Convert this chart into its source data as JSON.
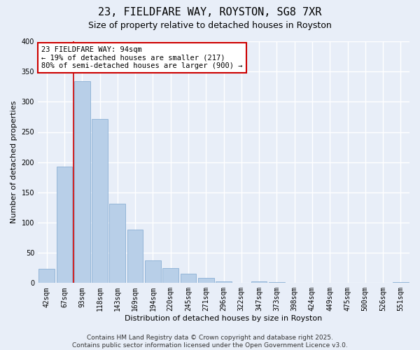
{
  "title": "23, FIELDFARE WAY, ROYSTON, SG8 7XR",
  "subtitle": "Size of property relative to detached houses in Royston",
  "xlabel": "Distribution of detached houses by size in Royston",
  "ylabel": "Number of detached properties",
  "categories": [
    "42sqm",
    "67sqm",
    "93sqm",
    "118sqm",
    "143sqm",
    "169sqm",
    "194sqm",
    "220sqm",
    "245sqm",
    "271sqm",
    "296sqm",
    "322sqm",
    "347sqm",
    "373sqm",
    "398sqm",
    "424sqm",
    "449sqm",
    "475sqm",
    "500sqm",
    "526sqm",
    "551sqm"
  ],
  "values": [
    24,
    193,
    334,
    271,
    131,
    88,
    37,
    25,
    16,
    8,
    3,
    0,
    3,
    2,
    0,
    0,
    0,
    0,
    0,
    0,
    1
  ],
  "bar_color": "#b8cfe8",
  "bar_edge_color": "#8aafd4",
  "vline_color": "#cc0000",
  "annotation_title": "23 FIELDFARE WAY: 94sqm",
  "annotation_line1": "← 19% of detached houses are smaller (217)",
  "annotation_line2": "80% of semi-detached houses are larger (900) →",
  "annotation_box_facecolor": "#ffffff",
  "annotation_box_edgecolor": "#cc0000",
  "ylim": [
    0,
    400
  ],
  "yticks": [
    0,
    50,
    100,
    150,
    200,
    250,
    300,
    350,
    400
  ],
  "footer_line1": "Contains HM Land Registry data © Crown copyright and database right 2025.",
  "footer_line2": "Contains public sector information licensed under the Open Government Licence v3.0.",
  "bg_color": "#e8eef8",
  "title_fontsize": 11,
  "subtitle_fontsize": 9,
  "axis_label_fontsize": 8,
  "tick_fontsize": 7,
  "footer_fontsize": 6.5,
  "annotation_fontsize": 7.5
}
